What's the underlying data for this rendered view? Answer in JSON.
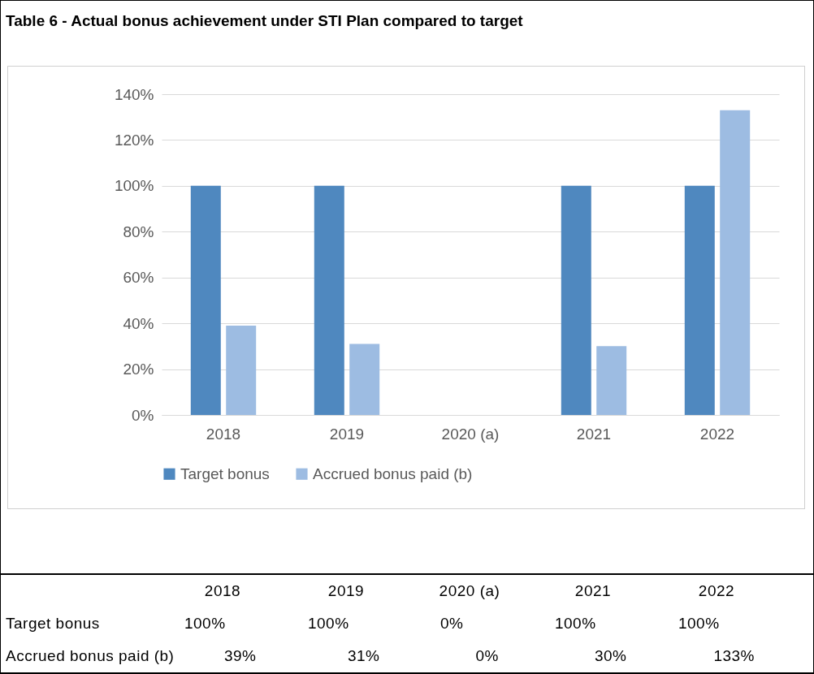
{
  "chart_data": {
    "type": "bar",
    "title": "Table 6 - Actual bonus achievement under STI Plan compared to target",
    "categories": [
      "2018",
      "2019",
      "2020 (a)",
      "2021",
      "2022"
    ],
    "series": [
      {
        "name": "Target bonus",
        "color": "#4f88bf",
        "values": [
          100,
          100,
          0,
          100,
          100
        ],
        "value_labels": [
          "100%",
          "100%",
          "0%",
          "100%",
          "100%"
        ]
      },
      {
        "name": "Accrued bonus paid (b)",
        "color": "#9dbce2",
        "values": [
          39,
          31,
          0,
          30,
          133
        ],
        "value_labels": [
          "39%",
          "31%",
          "0%",
          "30%",
          "133%"
        ]
      }
    ],
    "ylim": [
      0,
      140
    ],
    "yticks": [
      {
        "value": 0,
        "label": "0%"
      },
      {
        "value": 20,
        "label": "20%"
      },
      {
        "value": 40,
        "label": "40%"
      },
      {
        "value": 60,
        "label": "60%"
      },
      {
        "value": 80,
        "label": "80%"
      },
      {
        "value": 100,
        "label": "100%"
      },
      {
        "value": 120,
        "label": "120%"
      },
      {
        "value": 140,
        "label": "140%"
      }
    ],
    "grid": "y",
    "legend": "bottom"
  }
}
